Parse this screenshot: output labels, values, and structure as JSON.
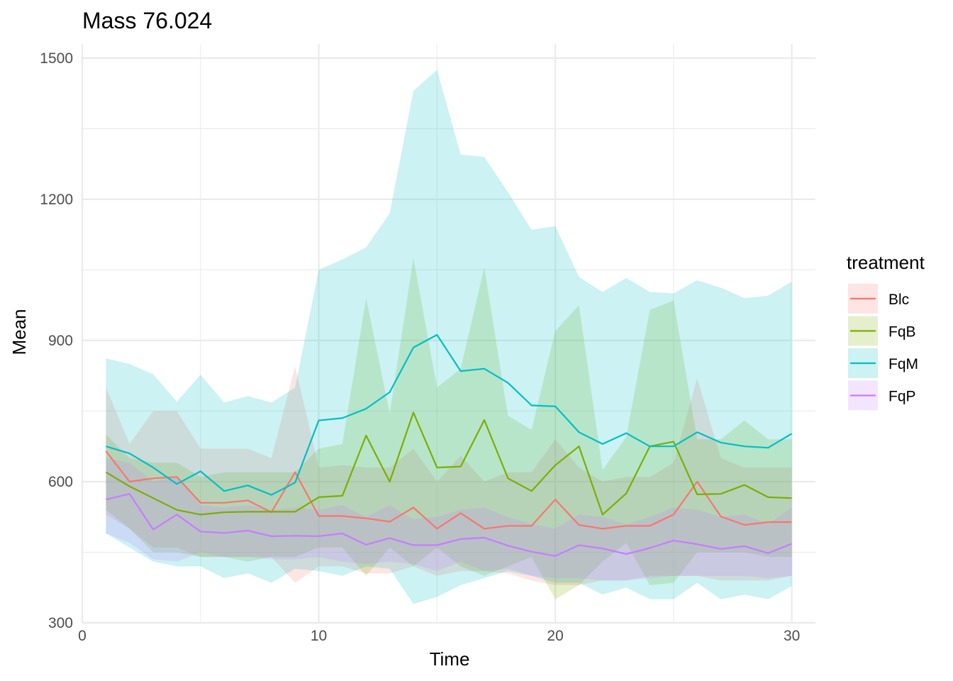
{
  "chart_data": {
    "type": "line",
    "title": "Mass 76.024",
    "xlabel": "Time",
    "ylabel": "Mean",
    "xlim": [
      0,
      31
    ],
    "ylim": [
      300,
      1530
    ],
    "x_ticks": [
      "0",
      "10",
      "20",
      "30"
    ],
    "y_ticks": [
      "300",
      "600",
      "900",
      "1200",
      "1500"
    ],
    "grid": true,
    "legend": {
      "title": "treatment",
      "position": "right"
    },
    "x": [
      1,
      2,
      3,
      4,
      5,
      6,
      7,
      8,
      9,
      10,
      11,
      12,
      13,
      14,
      15,
      16,
      17,
      18,
      19,
      20,
      21,
      22,
      23,
      24,
      25,
      26,
      27,
      28,
      29,
      30
    ],
    "series": [
      {
        "name": "Blc",
        "color": "#F8766D",
        "values": [
          665,
          600,
          607,
          610,
          555,
          555,
          560,
          535,
          620,
          527,
          527,
          522,
          515,
          545,
          500,
          533,
          500,
          506,
          506,
          562,
          508,
          500,
          506,
          506,
          530,
          600,
          526,
          508,
          514,
          514
        ],
        "lower": [
          530,
          500,
          460,
          460,
          440,
          440,
          440,
          440,
          385,
          420,
          420,
          405,
          405,
          420,
          400,
          410,
          410,
          405,
          390,
          380,
          380,
          390,
          390,
          400,
          400,
          400,
          390,
          390,
          390,
          400
        ],
        "upper": [
          800,
          680,
          750,
          750,
          670,
          670,
          670,
          650,
          845,
          630,
          635,
          630,
          630,
          670,
          600,
          655,
          600,
          620,
          620,
          690,
          630,
          600,
          610,
          610,
          640,
          820,
          650,
          630,
          630,
          630
        ]
      },
      {
        "name": "FqB",
        "color": "#7CAE00",
        "values": [
          620,
          590,
          565,
          540,
          530,
          535,
          536,
          536,
          536,
          567,
          570,
          698,
          600,
          747,
          630,
          632,
          731,
          607,
          580,
          635,
          675,
          530,
          575,
          675,
          685,
          573,
          574,
          593,
          567,
          565
        ],
        "lower": [
          540,
          500,
          450,
          450,
          440,
          440,
          430,
          440,
          440,
          460,
          460,
          400,
          460,
          420,
          460,
          420,
          400,
          420,
          440,
          350,
          380,
          430,
          470,
          380,
          385,
          450,
          450,
          450,
          440,
          440
        ],
        "upper": [
          700,
          650,
          640,
          640,
          610,
          620,
          620,
          620,
          620,
          670,
          680,
          990,
          745,
          1075,
          800,
          840,
          1055,
          740,
          710,
          920,
          975,
          625,
          695,
          965,
          985,
          690,
          690,
          730,
          690,
          690
        ]
      },
      {
        "name": "FqM",
        "color": "#00BFC4",
        "values": [
          675,
          660,
          630,
          595,
          622,
          580,
          592,
          572,
          598,
          730,
          735,
          755,
          790,
          885,
          912,
          835,
          840,
          810,
          762,
          760,
          705,
          680,
          703,
          675,
          675,
          705,
          683,
          675,
          672,
          702
        ],
        "lower": [
          490,
          460,
          430,
          420,
          420,
          395,
          405,
          385,
          415,
          410,
          400,
          420,
          415,
          340,
          355,
          380,
          395,
          410,
          400,
          385,
          385,
          360,
          375,
          350,
          350,
          385,
          350,
          360,
          350,
          378
        ],
        "upper": [
          862,
          850,
          828,
          770,
          827,
          768,
          782,
          768,
          800,
          1050,
          1072,
          1098,
          1170,
          1430,
          1475,
          1295,
          1290,
          1215,
          1135,
          1143,
          1035,
          1003,
          1033,
          1003,
          1000,
          1028,
          1012,
          990,
          995,
          1025
        ]
      },
      {
        "name": "FqP",
        "color": "#C77CFF",
        "values": [
          562,
          574,
          498,
          530,
          494,
          491,
          496,
          484,
          485,
          484,
          490,
          466,
          480,
          465,
          465,
          478,
          481,
          464,
          451,
          442,
          465,
          458,
          446,
          459,
          475,
          467,
          457,
          463,
          448,
          468
        ],
        "lower": [
          490,
          470,
          435,
          430,
          450,
          440,
          440,
          435,
          435,
          440,
          430,
          425,
          430,
          425,
          410,
          430,
          410,
          415,
          400,
          395,
          395,
          390,
          390,
          395,
          400,
          400,
          400,
          400,
          395,
          400
        ],
        "upper": [
          650,
          640,
          600,
          610,
          550,
          545,
          550,
          540,
          545,
          540,
          550,
          525,
          550,
          520,
          525,
          540,
          545,
          525,
          510,
          500,
          530,
          525,
          510,
          525,
          545,
          540,
          525,
          530,
          510,
          545
        ]
      }
    ]
  }
}
